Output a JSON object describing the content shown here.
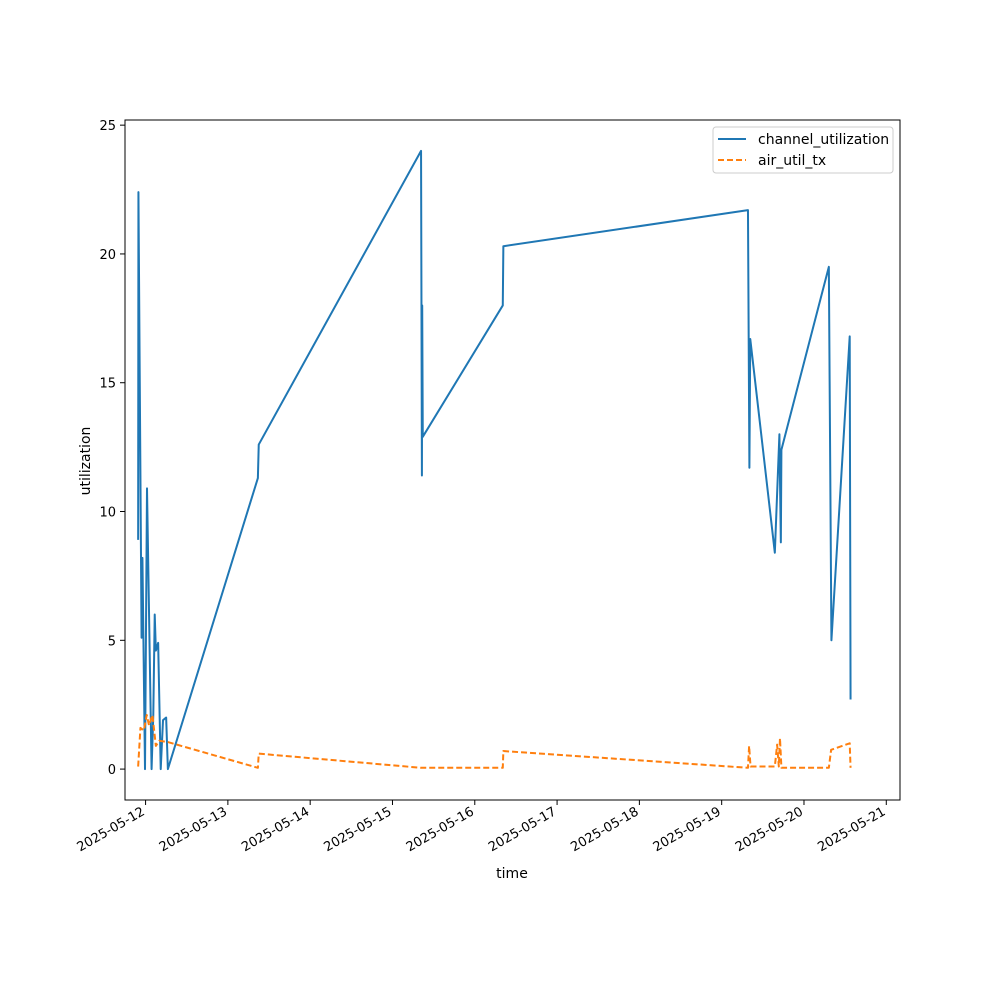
{
  "chart_data": {
    "type": "line",
    "xlabel": "time",
    "ylabel": "utilization",
    "xlim": [
      "2025-05-11 18:00",
      "2025-05-21 04:00"
    ],
    "ylim": [
      -1.2,
      25.2
    ],
    "yticks": [
      0,
      5,
      10,
      15,
      20,
      25
    ],
    "xticks": [
      "2025-05-12",
      "2025-05-13",
      "2025-05-14",
      "2025-05-15",
      "2025-05-16",
      "2025-05-17",
      "2025-05-18",
      "2025-05-19",
      "2025-05-20",
      "2025-05-21"
    ],
    "grid": false,
    "legend_position": "top-right",
    "series": [
      {
        "name": "channel_utilization",
        "color": "#1f77b4",
        "style": "solid",
        "points": [
          [
            "2025-05-11 21:50",
            8.9
          ],
          [
            "2025-05-11 21:55",
            22.4
          ],
          [
            "2025-05-11 22:50",
            5.1
          ],
          [
            "2025-05-11 23:05",
            8.2
          ],
          [
            "2025-05-11 23:50",
            0.0
          ],
          [
            "2025-05-12 00:25",
            10.9
          ],
          [
            "2025-05-12 01:45",
            0.0
          ],
          [
            "2025-05-12 02:15",
            2.1
          ],
          [
            "2025-05-12 02:40",
            6.0
          ],
          [
            "2025-05-12 03:00",
            4.6
          ],
          [
            "2025-05-12 03:40",
            4.9
          ],
          [
            "2025-05-12 04:25",
            0.0
          ],
          [
            "2025-05-12 05:05",
            1.9
          ],
          [
            "2025-05-12 06:00",
            2.0
          ],
          [
            "2025-05-12 06:30",
            0.0
          ],
          [
            "2025-05-13 08:45",
            11.3
          ],
          [
            "2025-05-13 09:00",
            12.6
          ],
          [
            "2025-05-15 08:20",
            24.0
          ],
          [
            "2025-05-15 08:35",
            11.4
          ],
          [
            "2025-05-15 08:40",
            18.0
          ],
          [
            "2025-05-15 08:50",
            12.9
          ],
          [
            "2025-05-16 08:10",
            18.0
          ],
          [
            "2025-05-16 08:20",
            20.3
          ],
          [
            "2025-05-19 07:40",
            21.7
          ],
          [
            "2025-05-19 08:05",
            11.7
          ],
          [
            "2025-05-19 08:20",
            16.7
          ],
          [
            "2025-05-19 15:30",
            8.4
          ],
          [
            "2025-05-19 16:50",
            13.0
          ],
          [
            "2025-05-19 17:15",
            8.8
          ],
          [
            "2025-05-19 17:25",
            12.4
          ],
          [
            "2025-05-20 07:15",
            19.5
          ],
          [
            "2025-05-20 08:00",
            5.0
          ],
          [
            "2025-05-20 13:20",
            16.8
          ],
          [
            "2025-05-20 13:35",
            2.7
          ]
        ]
      },
      {
        "name": "air_util_tx",
        "color": "#ff7f0e",
        "style": "dashed",
        "points": [
          [
            "2025-05-11 21:50",
            0.1
          ],
          [
            "2025-05-11 22:30",
            1.6
          ],
          [
            "2025-05-11 23:30",
            1.5
          ],
          [
            "2025-05-12 00:20",
            2.1
          ],
          [
            "2025-05-12 01:00",
            1.7
          ],
          [
            "2025-05-12 02:00",
            2.1
          ],
          [
            "2025-05-12 03:00",
            0.9
          ],
          [
            "2025-05-12 04:00",
            1.1
          ],
          [
            "2025-05-12 06:30",
            1.05
          ],
          [
            "2025-05-13 08:45",
            0.05
          ],
          [
            "2025-05-13 09:00",
            0.6
          ],
          [
            "2025-05-15 08:20",
            0.05
          ],
          [
            "2025-05-16 08:10",
            0.05
          ],
          [
            "2025-05-16 08:20",
            0.7
          ],
          [
            "2025-05-19 07:40",
            0.05
          ],
          [
            "2025-05-19 08:00",
            0.9
          ],
          [
            "2025-05-19 08:25",
            0.1
          ],
          [
            "2025-05-19 15:30",
            0.1
          ],
          [
            "2025-05-19 16:10",
            0.95
          ],
          [
            "2025-05-19 16:40",
            0.1
          ],
          [
            "2025-05-19 17:00",
            1.2
          ],
          [
            "2025-05-19 17:25",
            0.05
          ],
          [
            "2025-05-20 07:15",
            0.05
          ],
          [
            "2025-05-20 07:55",
            0.75
          ],
          [
            "2025-05-20 13:20",
            1.0
          ],
          [
            "2025-05-20 13:35",
            0.05
          ]
        ]
      }
    ]
  }
}
